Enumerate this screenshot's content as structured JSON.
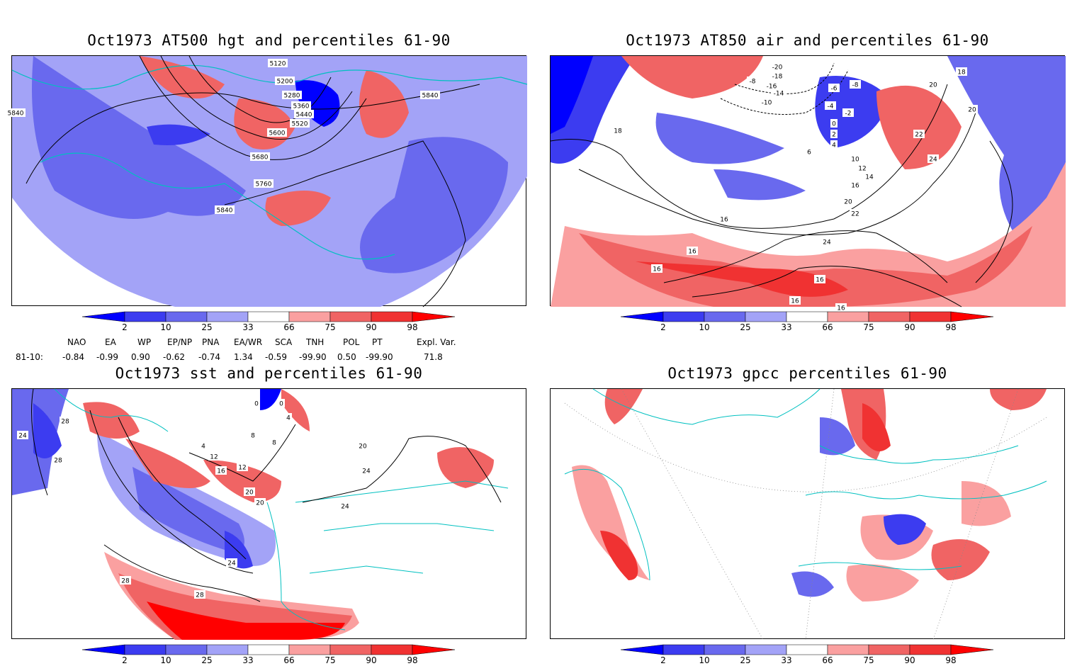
{
  "panels": [
    {
      "title": "Oct1973 AT500 hgt and percentiles 61-90",
      "contour_labels": [
        "5120",
        "5200",
        "5280",
        "5360",
        "5440",
        "5520",
        "5600",
        "5680",
        "5760",
        "5840",
        "5840",
        "5840"
      ]
    },
    {
      "title": "Oct1973 AT850 air and percentiles 61-90",
      "contour_labels": [
        "-20",
        "-18",
        "-16",
        "-14",
        "-10",
        "-8",
        "-8",
        "-6",
        "-4",
        "-2",
        "0",
        "2",
        "4",
        "6",
        "10",
        "12",
        "14",
        "16",
        "16",
        "16",
        "16",
        "16",
        "16",
        "18",
        "18",
        "20",
        "20",
        "20",
        "22",
        "22",
        "24",
        "24",
        "16"
      ]
    },
    {
      "title": "Oct1973 sst and percentiles 61-90",
      "contour_labels": [
        "24",
        "28",
        "28",
        "0",
        "0",
        "4",
        "4",
        "8",
        "8",
        "12",
        "12",
        "16",
        "20",
        "20",
        "24",
        "24",
        "24",
        "28",
        "28",
        "20"
      ]
    },
    {
      "title": "Oct1973 gpcc percentiles 61-90",
      "contour_labels": []
    }
  ],
  "colorbar": {
    "labels": [
      "2",
      "10",
      "25",
      "33",
      "66",
      "75",
      "90",
      "98"
    ],
    "colors": [
      "#0000ff",
      "#3c3cf0",
      "#6969ee",
      "#a3a3f7",
      "#ffffff",
      "#faa0a0",
      "#f06464",
      "#f03232",
      "#ff0000"
    ]
  },
  "indices": {
    "row_label": "81-10:",
    "headers": [
      "NAO",
      "EA",
      "WP",
      "EP/NP",
      "PNA",
      "EA/WR",
      "SCA",
      "TNH",
      "POL",
      "PT",
      "Expl. Var."
    ],
    "values": [
      "-0.84",
      "-0.99",
      "0.90",
      "-0.62",
      "-0.74",
      "1.34",
      "-0.59",
      "-99.90",
      "0.50",
      "-99.90",
      "71.8"
    ]
  }
}
